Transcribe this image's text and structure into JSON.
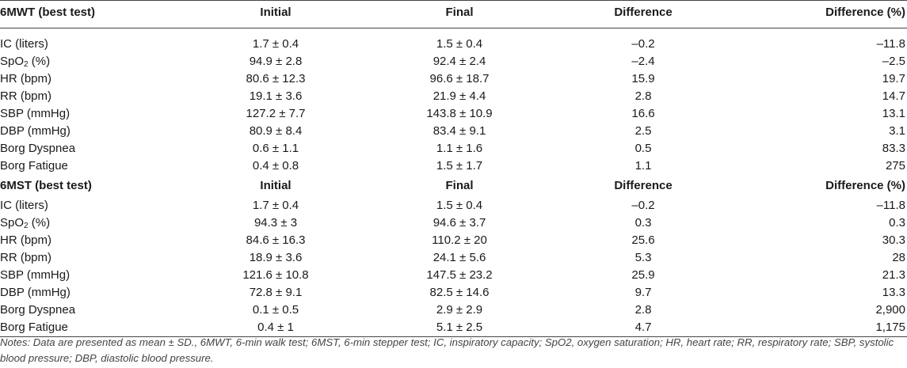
{
  "sections": [
    {
      "title": "6MWT (best test)",
      "headers": [
        "Initial",
        "Final",
        "Difference",
        "Difference (%)"
      ],
      "rows": [
        {
          "label": "IC (liters)",
          "initial": "1.7 ± 0.4",
          "final": "1.5 ± 0.4",
          "diff": "–0.2",
          "pct": "–11.8"
        },
        {
          "label_main": "SpO",
          "label_sub": "2",
          "label_tail": " (%)",
          "initial": "94.9 ± 2.8",
          "final": "92.4 ± 2.4",
          "diff": "–2.4",
          "pct": "–2.5"
        },
        {
          "label": "HR (bpm)",
          "initial": "80.6 ± 12.3",
          "final": "96.6 ± 18.7",
          "diff": "15.9",
          "pct": "19.7"
        },
        {
          "label": "RR (bpm)",
          "initial": "19.1 ± 3.6",
          "final": "21.9 ± 4.4",
          "diff": "2.8",
          "pct": "14.7"
        },
        {
          "label": "SBP (mmHg)",
          "initial": "127.2 ± 7.7",
          "final": "143.8 ± 10.9",
          "diff": "16.6",
          "pct": "13.1"
        },
        {
          "label": "DBP (mmHg)",
          "initial": "80.9 ± 8.4",
          "final": "83.4 ± 9.1",
          "diff": "2.5",
          "pct": "3.1"
        },
        {
          "label": "Borg Dyspnea",
          "initial": "0.6 ± 1.1",
          "final": "1.1 ± 1.6",
          "diff": "0.5",
          "pct": "83.3"
        },
        {
          "label": "Borg Fatigue",
          "initial": "0.4 ± 0.8",
          "final": "1.5 ± 1.7",
          "diff": "1.1",
          "pct": "275"
        }
      ]
    },
    {
      "title": "6MST (best test)",
      "headers": [
        "Initial",
        "Final",
        "Difference",
        "Difference (%)"
      ],
      "rows": [
        {
          "label": "IC (liters)",
          "initial": "1.7 ± 0.4",
          "final": "1.5 ± 0.4",
          "diff": "–0.2",
          "pct": "–11.8"
        },
        {
          "label_main": "SpO",
          "label_sub": "2",
          "label_tail": " (%)",
          "initial": "94.3 ± 3",
          "final": "94.6 ± 3.7",
          "diff": "0.3",
          "pct": "0.3"
        },
        {
          "label": "HR (bpm)",
          "initial": "84.6 ± 16.3",
          "final": "110.2 ± 20",
          "diff": "25.6",
          "pct": "30.3"
        },
        {
          "label": "RR (bpm)",
          "initial": "18.9 ± 3.6",
          "final": "24.1 ± 5.6",
          "diff": "5.3",
          "pct": "28"
        },
        {
          "label": "SBP (mmHg)",
          "initial": "121.6 ± 10.8",
          "final": "147.5 ± 23.2",
          "diff": "25.9",
          "pct": "21.3"
        },
        {
          "label": "DBP (mmHg)",
          "initial": "72.8 ± 9.1",
          "final": "82.5 ± 14.6",
          "diff": "9.7",
          "pct": "13.3"
        },
        {
          "label": "Borg Dyspnea",
          "initial": "0.1 ± 0.5",
          "final": "2.9 ± 2.9",
          "diff": "2.8",
          "pct": "2,900"
        },
        {
          "label": "Borg Fatigue",
          "initial": "0.4 ± 1",
          "final": "5.1 ± 2.5",
          "diff": "4.7",
          "pct": "1,175"
        }
      ]
    }
  ],
  "notes": "Notes: Data are presented as mean ± SD., 6MWT, 6-min walk test; 6MST, 6-min stepper test; IC, inspiratory capacity; SpO2, oxygen saturation; HR, heart rate; RR, respiratory rate; SBP, systolic blood pressure; DBP, diastolic blood pressure."
}
